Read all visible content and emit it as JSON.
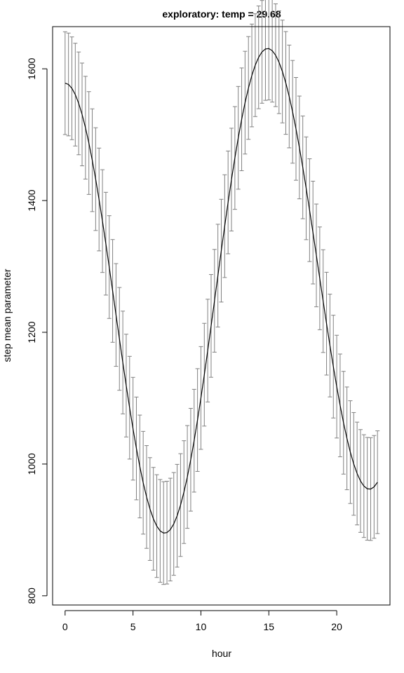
{
  "chart_data": {
    "type": "line",
    "title": "exploratory: temp = 29.68",
    "xlabel": "hour",
    "ylabel": "step mean parameter",
    "xlim": [
      -0.92,
      23.92
    ],
    "ylim": [
      786,
      1664
    ],
    "x_ticks": [
      0,
      5,
      10,
      15,
      20
    ],
    "y_ticks": [
      800,
      1000,
      1200,
      1400,
      1600
    ],
    "grid": false,
    "legend": "none",
    "series": [
      {
        "line_color": "#000000",
        "errorbar_color": "#808080",
        "x": [
          0,
          0.25,
          0.5,
          0.75,
          1,
          1.25,
          1.5,
          1.75,
          2,
          2.25,
          2.5,
          2.75,
          3,
          3.25,
          3.5,
          3.75,
          4,
          4.25,
          4.5,
          4.75,
          5,
          5.25,
          5.5,
          5.75,
          6,
          6.25,
          6.5,
          6.75,
          7,
          7.25,
          7.5,
          7.75,
          8,
          8.25,
          8.5,
          8.75,
          9,
          9.25,
          9.5,
          9.75,
          10,
          10.25,
          10.5,
          10.75,
          11,
          11.25,
          11.5,
          11.75,
          12,
          12.25,
          12.5,
          12.75,
          13,
          13.25,
          13.5,
          13.75,
          14,
          14.25,
          14.5,
          14.75,
          15,
          15.25,
          15.5,
          15.75,
          16,
          16.25,
          16.5,
          16.75,
          17,
          17.25,
          17.5,
          17.75,
          18,
          18.25,
          18.5,
          18.75,
          19,
          19.25,
          19.5,
          19.75,
          20,
          20.25,
          20.5,
          20.75,
          21,
          21.25,
          21.5,
          21.75,
          22,
          22.25,
          22.5,
          22.75,
          23
        ],
        "y": [
          1578.2,
          1576.2,
          1570.4,
          1560.8,
          1547.5,
          1530.7,
          1510.6,
          1487.3,
          1461.2,
          1432.5,
          1401.6,
          1368.8,
          1334.5,
          1299.0,
          1262.8,
          1226.3,
          1190.0,
          1154.1,
          1119.1,
          1085.5,
          1053.6,
          1023.7,
          996.3,
          971.6,
          950.0,
          931.7,
          916.9,
          905.8,
          898.5,
          895.2,
          895.9,
          900.5,
          909.1,
          921.5,
          937.7,
          957.4,
          980.4,
          1006.5,
          1035.4,
          1066.8,
          1100.3,
          1135.6,
          1172.2,
          1209.7,
          1247.8,
          1286.0,
          1323.9,
          1361.1,
          1397.2,
          1431.8,
          1464.6,
          1495.2,
          1523.3,
          1548.6,
          1570.9,
          1589.9,
          1605.5,
          1617.4,
          1625.7,
          1630.1,
          1630.7,
          1627.5,
          1620.6,
          1610.0,
          1595.9,
          1578.5,
          1558.0,
          1534.7,
          1508.8,
          1480.6,
          1450.4,
          1418.6,
          1385.4,
          1351.4,
          1316.7,
          1281.9,
          1247.3,
          1213.1,
          1179.9,
          1147.9,
          1117.5,
          1089.0,
          1062.7,
          1039.0,
          1018.1,
          1000.2,
          985.6,
          974.3,
          966.5,
          962.4,
          962.0,
          965.3,
          972.4
        ],
        "y_lower": [
          1500.2,
          1498.2,
          1492.4,
          1482.8,
          1469.5,
          1452.7,
          1432.6,
          1409.3,
          1383.2,
          1354.5,
          1323.6,
          1290.8,
          1256.5,
          1221.0,
          1184.8,
          1148.3,
          1112.0,
          1076.1,
          1041.1,
          1007.5,
          975.6,
          945.7,
          918.3,
          893.6,
          872.0,
          853.7,
          838.9,
          827.8,
          820.5,
          817.2,
          817.9,
          822.5,
          831.1,
          843.5,
          859.7,
          879.4,
          902.4,
          928.5,
          957.4,
          988.8,
          1022.3,
          1057.6,
          1094.2,
          1131.7,
          1169.8,
          1208.0,
          1245.9,
          1283.1,
          1319.2,
          1353.8,
          1386.6,
          1417.2,
          1445.3,
          1470.6,
          1492.9,
          1511.9,
          1527.5,
          1539.4,
          1547.7,
          1552.1,
          1552.7,
          1549.5,
          1542.6,
          1532.0,
          1517.9,
          1500.5,
          1480.0,
          1456.7,
          1430.8,
          1402.6,
          1372.4,
          1340.6,
          1307.4,
          1273.4,
          1238.7,
          1203.9,
          1169.3,
          1135.1,
          1101.9,
          1069.9,
          1039.5,
          1011.0,
          984.7,
          961.0,
          940.1,
          922.2,
          907.6,
          896.3,
          888.5,
          884.4,
          884.0,
          887.3,
          894.4
        ],
        "y_upper": [
          1656.2,
          1654.2,
          1648.4,
          1638.8,
          1625.5,
          1608.7,
          1588.6,
          1565.3,
          1539.2,
          1510.5,
          1479.6,
          1446.8,
          1412.5,
          1377.0,
          1340.8,
          1304.3,
          1268.0,
          1232.1,
          1197.1,
          1163.5,
          1131.6,
          1101.7,
          1074.3,
          1049.6,
          1028.0,
          1009.7,
          994.9,
          983.8,
          976.5,
          973.2,
          973.9,
          978.5,
          987.1,
          999.5,
          1015.7,
          1035.4,
          1058.4,
          1084.5,
          1113.4,
          1144.8,
          1178.3,
          1213.6,
          1250.2,
          1287.7,
          1325.8,
          1364.0,
          1401.9,
          1439.1,
          1475.2,
          1509.8,
          1542.6,
          1573.2,
          1601.3,
          1626.6,
          1648.9,
          1667.9,
          1683.5,
          1695.4,
          1703.7,
          1708.1,
          1708.7,
          1705.5,
          1698.6,
          1688.0,
          1673.9,
          1656.5,
          1636.0,
          1612.7,
          1586.8,
          1558.6,
          1528.4,
          1496.6,
          1463.4,
          1429.4,
          1394.7,
          1359.9,
          1325.3,
          1291.1,
          1257.9,
          1225.9,
          1195.5,
          1167.0,
          1140.7,
          1117.0,
          1096.1,
          1078.2,
          1063.6,
          1052.3,
          1044.5,
          1040.4,
          1040.0,
          1043.3,
          1050.4
        ]
      }
    ]
  }
}
